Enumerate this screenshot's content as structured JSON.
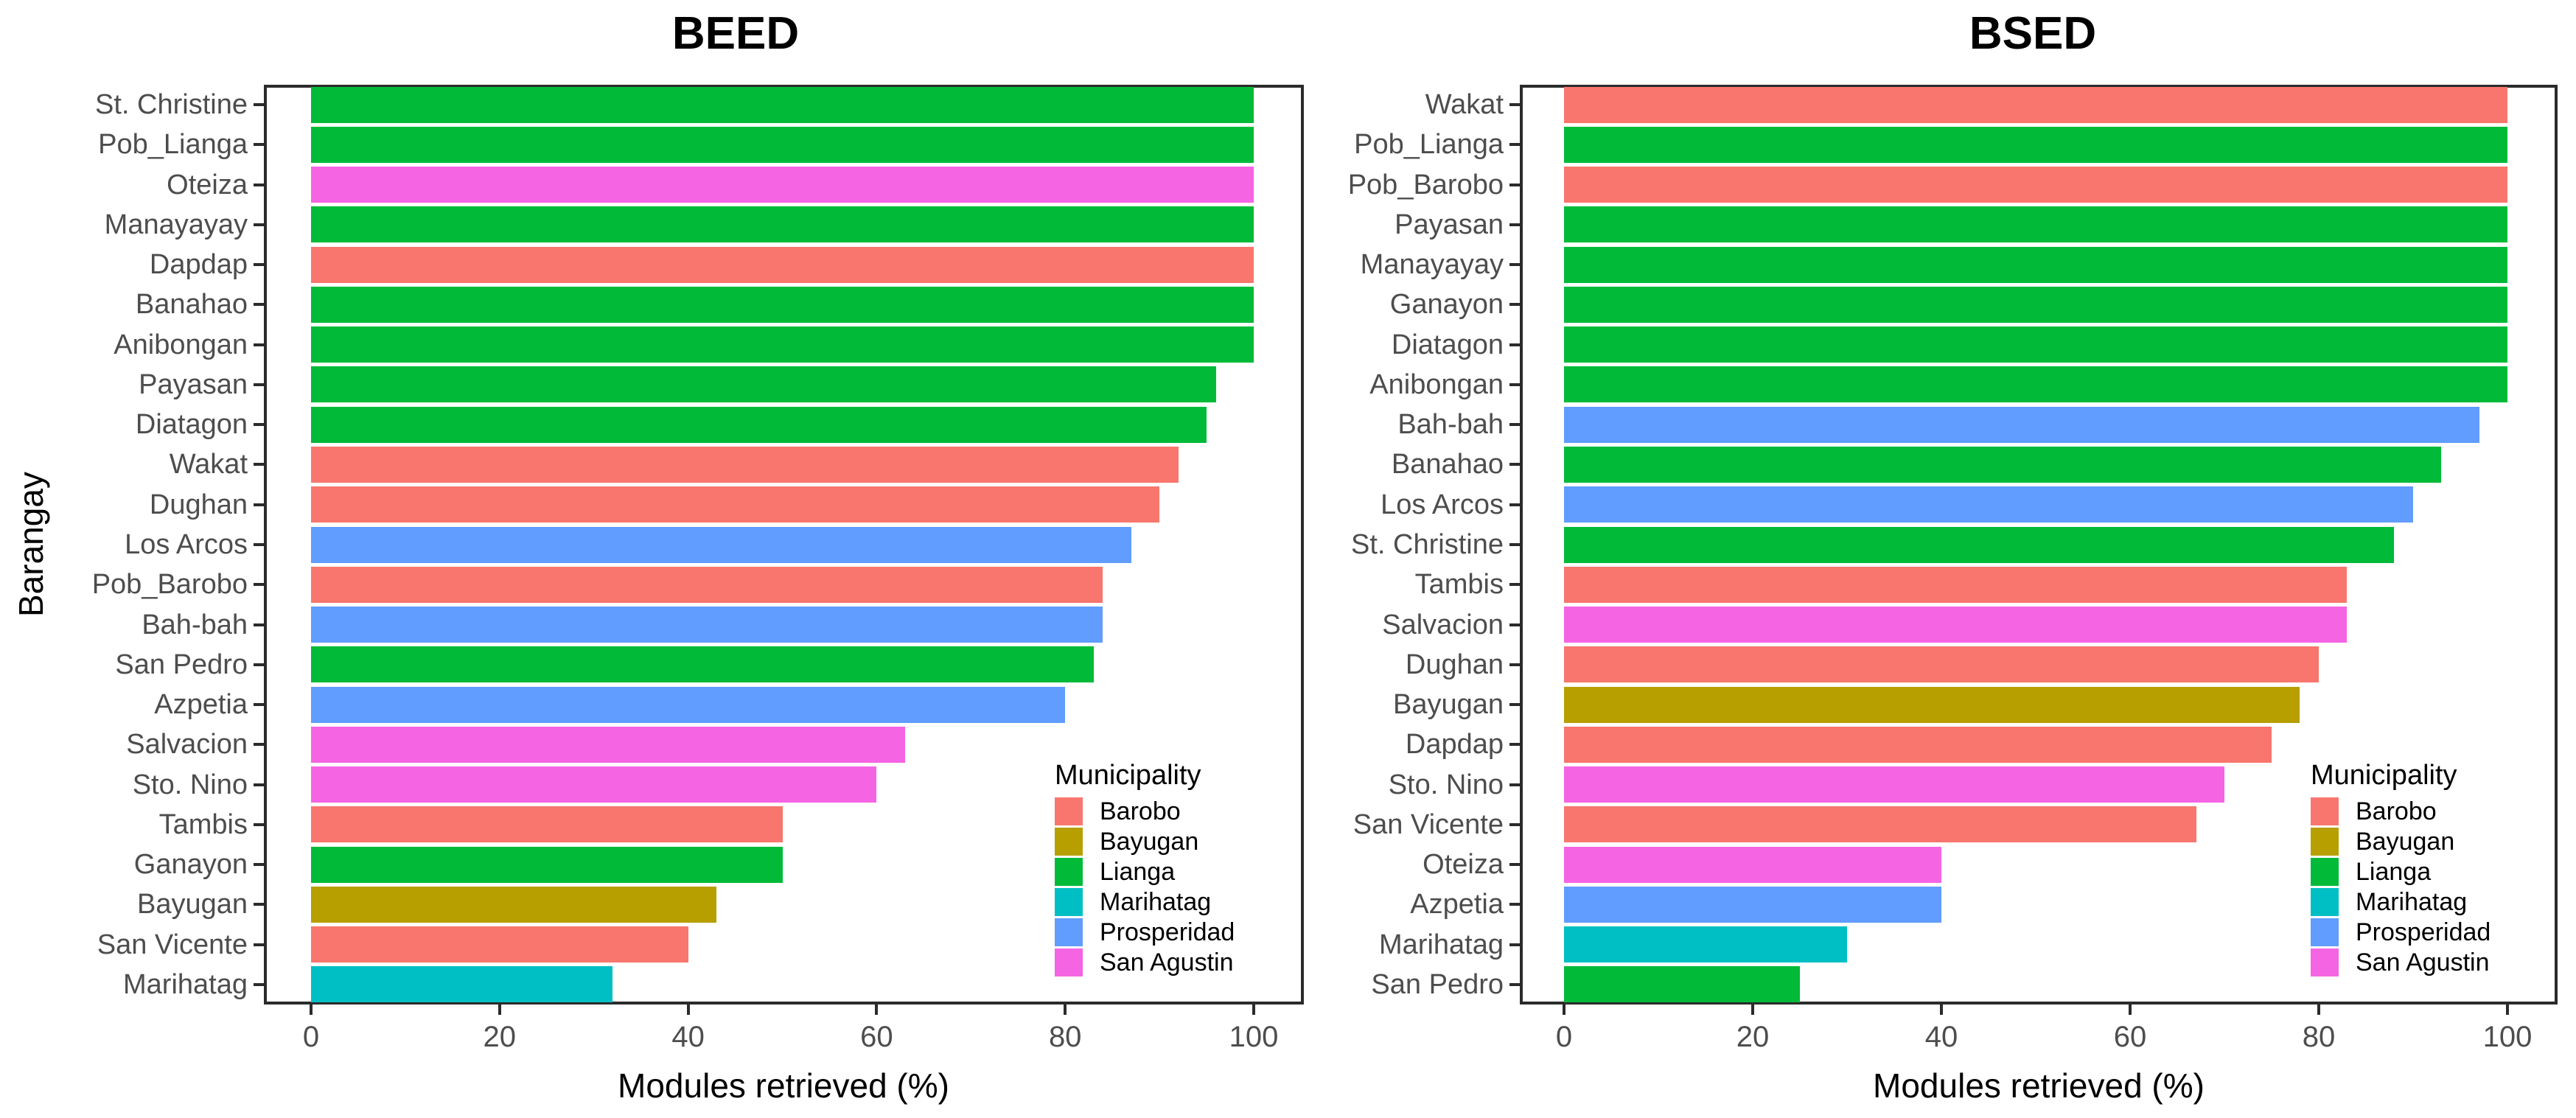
{
  "figure": {
    "ylabel": "Barangay"
  },
  "legend": {
    "title": "Municipality",
    "items": [
      {
        "label": "Barobo",
        "color": "#F8766D"
      },
      {
        "label": "Bayugan",
        "color": "#B79F00"
      },
      {
        "label": "Lianga",
        "color": "#00BA38"
      },
      {
        "label": "Marihatag",
        "color": "#00BFC4"
      },
      {
        "label": "Prosperidad",
        "color": "#619CFF"
      },
      {
        "label": "San Agustin",
        "color": "#F564E3"
      }
    ]
  },
  "chart_data": [
    {
      "type": "bar",
      "orientation": "horizontal",
      "title": "BEED",
      "xlabel": "Modules retrieved (%)",
      "ylabel": "Barangay",
      "xlim": [
        0,
        100
      ],
      "xticks": [
        0,
        20,
        40,
        60,
        80,
        100
      ],
      "grid": false,
      "legend_title": "Municipality",
      "bars": [
        {
          "barangay": "St. Christine",
          "municipality": "Lianga",
          "value": 100
        },
        {
          "barangay": "Pob_Lianga",
          "municipality": "Lianga",
          "value": 100
        },
        {
          "barangay": "Oteiza",
          "municipality": "San Agustin",
          "value": 100
        },
        {
          "barangay": "Manayayay",
          "municipality": "Lianga",
          "value": 100
        },
        {
          "barangay": "Dapdap",
          "municipality": "Barobo",
          "value": 100
        },
        {
          "barangay": "Banahao",
          "municipality": "Lianga",
          "value": 100
        },
        {
          "barangay": "Anibongan",
          "municipality": "Lianga",
          "value": 100
        },
        {
          "barangay": "Payasan",
          "municipality": "Lianga",
          "value": 96
        },
        {
          "barangay": "Diatagon",
          "municipality": "Lianga",
          "value": 95
        },
        {
          "barangay": "Wakat",
          "municipality": "Barobo",
          "value": 92
        },
        {
          "barangay": "Dughan",
          "municipality": "Barobo",
          "value": 90
        },
        {
          "barangay": "Los Arcos",
          "municipality": "Prosperidad",
          "value": 87
        },
        {
          "barangay": "Pob_Barobo",
          "municipality": "Barobo",
          "value": 84
        },
        {
          "barangay": "Bah-bah",
          "municipality": "Prosperidad",
          "value": 84
        },
        {
          "barangay": "San Pedro",
          "municipality": "Lianga",
          "value": 83
        },
        {
          "barangay": "Azpetia",
          "municipality": "Prosperidad",
          "value": 80
        },
        {
          "barangay": "Salvacion",
          "municipality": "San Agustin",
          "value": 63
        },
        {
          "barangay": "Sto. Nino",
          "municipality": "San Agustin",
          "value": 60
        },
        {
          "barangay": "Tambis",
          "municipality": "Barobo",
          "value": 50
        },
        {
          "barangay": "Ganayon",
          "municipality": "Lianga",
          "value": 50
        },
        {
          "barangay": "Bayugan",
          "municipality": "Bayugan",
          "value": 43
        },
        {
          "barangay": "San Vicente",
          "municipality": "Barobo",
          "value": 40
        },
        {
          "barangay": "Marihatag",
          "municipality": "Marihatag",
          "value": 32
        }
      ]
    },
    {
      "type": "bar",
      "orientation": "horizontal",
      "title": "BSED",
      "xlabel": "Modules retrieved (%)",
      "ylabel": "Barangay",
      "xlim": [
        0,
        100
      ],
      "xticks": [
        0,
        20,
        40,
        60,
        80,
        100
      ],
      "grid": false,
      "legend_title": "Municipality",
      "bars": [
        {
          "barangay": "Wakat",
          "municipality": "Barobo",
          "value": 100
        },
        {
          "barangay": "Pob_Lianga",
          "municipality": "Lianga",
          "value": 100
        },
        {
          "barangay": "Pob_Barobo",
          "municipality": "Barobo",
          "value": 100
        },
        {
          "barangay": "Payasan",
          "municipality": "Lianga",
          "value": 100
        },
        {
          "barangay": "Manayayay",
          "municipality": "Lianga",
          "value": 100
        },
        {
          "barangay": "Ganayon",
          "municipality": "Lianga",
          "value": 100
        },
        {
          "barangay": "Diatagon",
          "municipality": "Lianga",
          "value": 100
        },
        {
          "barangay": "Anibongan",
          "municipality": "Lianga",
          "value": 100
        },
        {
          "barangay": "Bah-bah",
          "municipality": "Prosperidad",
          "value": 97
        },
        {
          "barangay": "Banahao",
          "municipality": "Lianga",
          "value": 93
        },
        {
          "barangay": "Los Arcos",
          "municipality": "Prosperidad",
          "value": 90
        },
        {
          "barangay": "St. Christine",
          "municipality": "Lianga",
          "value": 88
        },
        {
          "barangay": "Tambis",
          "municipality": "Barobo",
          "value": 83
        },
        {
          "barangay": "Salvacion",
          "municipality": "San Agustin",
          "value": 83
        },
        {
          "barangay": "Dughan",
          "municipality": "Barobo",
          "value": 80
        },
        {
          "barangay": "Bayugan",
          "municipality": "Bayugan",
          "value": 78
        },
        {
          "barangay": "Dapdap",
          "municipality": "Barobo",
          "value": 75
        },
        {
          "barangay": "Sto. Nino",
          "municipality": "San Agustin",
          "value": 70
        },
        {
          "barangay": "San Vicente",
          "municipality": "Barobo",
          "value": 67
        },
        {
          "barangay": "Oteiza",
          "municipality": "San Agustin",
          "value": 40
        },
        {
          "barangay": "Azpetia",
          "municipality": "Prosperidad",
          "value": 40
        },
        {
          "barangay": "Marihatag",
          "municipality": "Marihatag",
          "value": 30
        },
        {
          "barangay": "San Pedro",
          "municipality": "Lianga",
          "value": 25
        }
      ]
    }
  ]
}
